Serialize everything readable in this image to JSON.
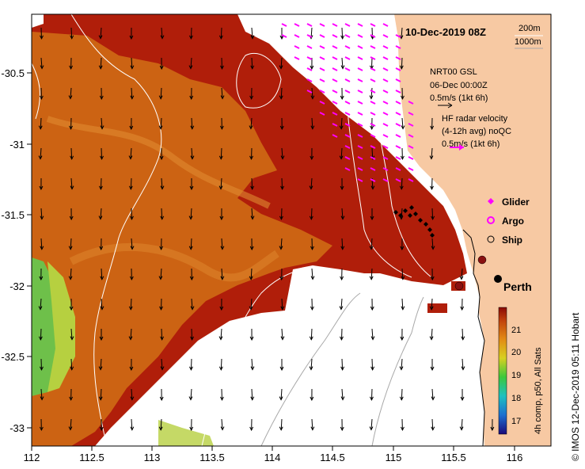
{
  "map": {
    "title": "10-Dec-2019 08Z",
    "depth_contours": [
      "200m",
      "1000m"
    ],
    "credit": "© IMOS 12-Dec-2019 05:11 Hobart",
    "colorbar_caption": "4h comp, p50, All Sats",
    "colorbar_ticks": [
      "21",
      "20",
      "19",
      "18",
      "17"
    ],
    "lon_ticks": [
      "112",
      "112.5",
      "113",
      "113.5",
      "114",
      "114.5",
      "115",
      "115.5",
      "116"
    ],
    "lat_ticks": [
      "-30.5",
      "-31",
      "-31.5",
      "-32",
      "-32.5",
      "-33"
    ],
    "city": "Perth",
    "wind_block": {
      "line1": "NRT00 GSL",
      "line2": "06-Dec 00:00Z",
      "line3": "0.5m/s (1kt 6h)"
    },
    "radar_block": {
      "line1": "HF radar velocity",
      "line2": "(4-12h avg) noQC",
      "line3": "0.5m/s (1kt 6h)"
    },
    "legend": [
      {
        "label": "Glider",
        "symbol": "diamond",
        "color": "#ff00ff"
      },
      {
        "label": "Argo",
        "symbol": "circle-x",
        "color": "#ff00ff"
      },
      {
        "label": "Ship",
        "symbol": "circle",
        "color": "#000000"
      }
    ],
    "colors": {
      "land": "#f7c9a3",
      "sst_warm": "#b01e0a",
      "sst_mid": "#cf6a14",
      "sst_cool": "#6ec04a",
      "radar_arrow": "#ff00ff",
      "contour": "#ffffff"
    }
  }
}
